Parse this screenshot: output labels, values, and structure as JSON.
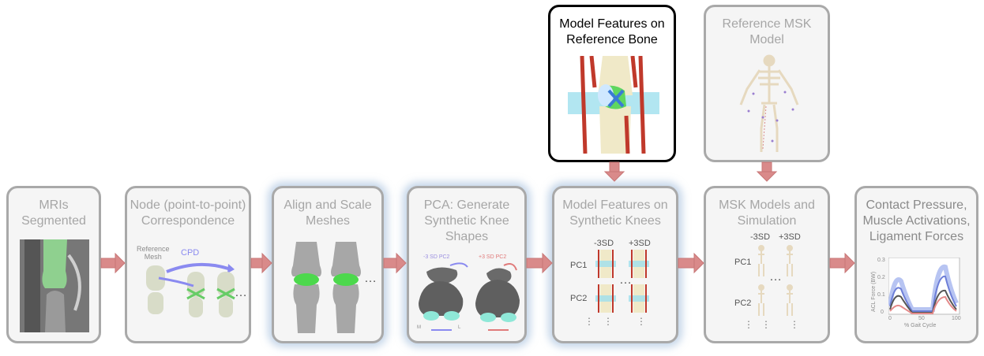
{
  "steps": {
    "mri": {
      "title": "MRIs\nSegmented"
    },
    "node": {
      "title": "Node (point-to-point)\nCorrespondence",
      "ref_mesh": "Reference\nMesh",
      "cpd": "CPD",
      "ellipsis": "…"
    },
    "align": {
      "title": "Align and Scale\nMeshes",
      "ellipsis": "…"
    },
    "pca": {
      "title": "PCA: Generate\nSynthetic Knee\nShapes",
      "minus_label": "-3 SD PC2",
      "plus_label": "+3 SD PC2",
      "axis_m": "M",
      "axis_l": "L"
    },
    "features_ref": {
      "title": "Model Features on\nReference Bone"
    },
    "features_syn": {
      "title": "Model Features on\nSynthetic Knees",
      "col_minus": "-3SD",
      "col_plus": "+3SD",
      "row1": "PC1",
      "row2": "PC2",
      "ellipsis": "…"
    },
    "msk_ref": {
      "title": "Reference MSK\nModel"
    },
    "msk_sim": {
      "title": "MSK Models and\nSimulation",
      "col_minus": "-3SD",
      "col_plus": "+3SD",
      "row1": "PC1",
      "row2": "PC2",
      "ellipsis": "…"
    },
    "output": {
      "title": "Contact Pressure,\nMuscle Activations,\nLigament Forces",
      "ylabel": "ACL Force (BW)",
      "xlabel": "% Gait Cycle",
      "yticks": [
        "0.3",
        "0.2",
        "0.1",
        "0"
      ],
      "xticks": [
        "0",
        "50",
        "100"
      ]
    }
  },
  "colors": {
    "box_border": "#a9a9a9",
    "active_border": "#000000",
    "arrow": "#d98a8a",
    "glow": "#96b4d7",
    "mesh_green": "#66dd66",
    "muscle_red": "#c0392b"
  }
}
